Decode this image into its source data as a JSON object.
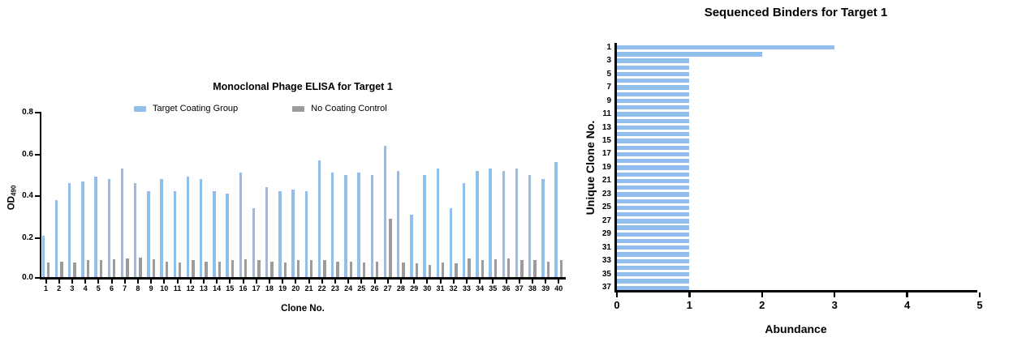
{
  "figure": {
    "background": "#ffffff",
    "axis_color": "#000000"
  },
  "colors": {
    "target_blue": "#92BEED",
    "control_gray": "#9C9C9C"
  },
  "chart_data": [
    {
      "type": "bar",
      "title": "Monoclonal Phage ELISA for Target 1",
      "xlabel": "Clone No.",
      "ylabel": "OD490",
      "ylabel_main": "OD",
      "ylabel_sub": "490",
      "ylim": [
        0,
        0.8
      ],
      "ytick_labels": [
        "0.0",
        "0.2",
        "0.4",
        "0.6",
        "0.8"
      ],
      "grid": false,
      "legend_position": "top",
      "categories": [
        1,
        2,
        3,
        4,
        5,
        6,
        7,
        8,
        9,
        10,
        11,
        12,
        13,
        14,
        15,
        16,
        17,
        18,
        19,
        20,
        21,
        22,
        23,
        24,
        25,
        26,
        27,
        28,
        29,
        30,
        31,
        32,
        33,
        34,
        35,
        36,
        37,
        38,
        39,
        40
      ],
      "series": [
        {
          "name": "Target Coating Group",
          "color": "#92BEED",
          "values": [
            0.2,
            0.37,
            0.45,
            0.46,
            0.48,
            0.47,
            0.52,
            0.45,
            0.41,
            0.47,
            0.41,
            0.48,
            0.47,
            0.41,
            0.4,
            0.5,
            0.33,
            0.43,
            0.41,
            0.42,
            0.41,
            0.56,
            0.5,
            0.49,
            0.5,
            0.49,
            0.63,
            0.51,
            0.3,
            0.49,
            0.52,
            0.33,
            0.45,
            0.51,
            0.52,
            0.51,
            0.52,
            0.49,
            0.47,
            0.55
          ]
        },
        {
          "name": "No Coating Control",
          "color": "#9C9C9C",
          "values": [
            0.07,
            0.075,
            0.07,
            0.08,
            0.08,
            0.085,
            0.09,
            0.095,
            0.085,
            0.075,
            0.07,
            0.08,
            0.075,
            0.075,
            0.08,
            0.085,
            0.08,
            0.075,
            0.07,
            0.08,
            0.08,
            0.08,
            0.075,
            0.075,
            0.07,
            0.075,
            0.28,
            0.07,
            0.065,
            0.06,
            0.07,
            0.065,
            0.09,
            0.08,
            0.085,
            0.09,
            0.08,
            0.08,
            0.075,
            0.08
          ]
        }
      ]
    },
    {
      "type": "bar-horizontal",
      "title": "Sequenced Binders for Target 1",
      "xlabel": "Abundance",
      "ylabel": "Unique Clone No.",
      "xlim": [
        0,
        5
      ],
      "xticks": [
        0,
        1,
        2,
        3,
        4,
        5
      ],
      "grid": false,
      "bar_color": "#92BEED",
      "categories": [
        1,
        2,
        3,
        4,
        5,
        6,
        7,
        8,
        9,
        10,
        11,
        12,
        13,
        14,
        15,
        16,
        17,
        18,
        19,
        20,
        21,
        22,
        23,
        24,
        25,
        26,
        27,
        28,
        29,
        30,
        31,
        32,
        33,
        34,
        35,
        36,
        37
      ],
      "ytick_labels": [
        "1",
        "3",
        "5",
        "7",
        "9",
        "11",
        "13",
        "15",
        "17",
        "19",
        "21",
        "23",
        "25",
        "27",
        "29",
        "31",
        "33",
        "35",
        "37"
      ],
      "values": [
        3,
        2,
        1,
        1,
        1,
        1,
        1,
        1,
        1,
        1,
        1,
        1,
        1,
        1,
        1,
        1,
        1,
        1,
        1,
        1,
        1,
        1,
        1,
        1,
        1,
        1,
        1,
        1,
        1,
        1,
        1,
        1,
        1,
        1,
        1,
        1,
        1
      ]
    }
  ]
}
